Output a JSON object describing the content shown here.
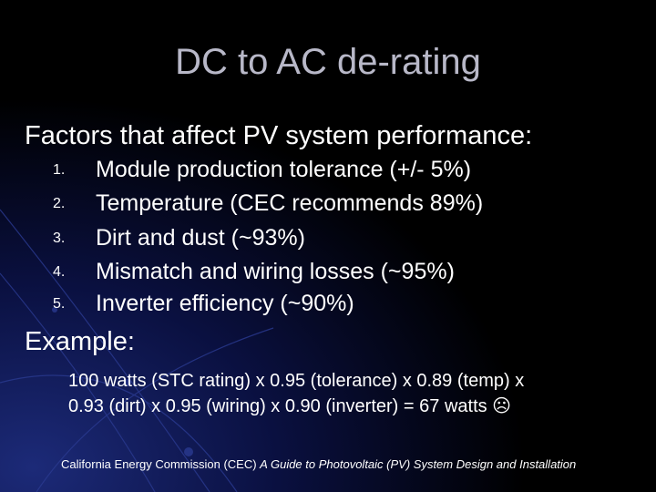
{
  "title": "DC to AC de-rating",
  "heading": "Factors that affect PV system performance:",
  "factors": [
    {
      "number": "1.",
      "text": "Module production tolerance (+/-  5%)"
    },
    {
      "number": "2.",
      "text": "Temperature (CEC recommends 89%)"
    },
    {
      "number": "3.",
      "text": "Dirt and dust (~93%)"
    },
    {
      "number": "4.",
      "text": "Mismatch and wiring losses (~95%)"
    },
    {
      "number": "5.",
      "text": "Inverter efficiency (~90%)"
    }
  ],
  "example": {
    "heading": "Example:",
    "lines": [
      "100 watts (STC rating) x 0.95 (tolerance) x 0.89 (temp) x",
      "0.93 (dirt) x 0.95 (wiring) x 0.90 (inverter) = 67 watts  ☹"
    ]
  },
  "citation": {
    "source": "California Energy Commission (CEC) ",
    "work": "A Guide to Photovoltaic (PV) System Design and Installation"
  }
}
